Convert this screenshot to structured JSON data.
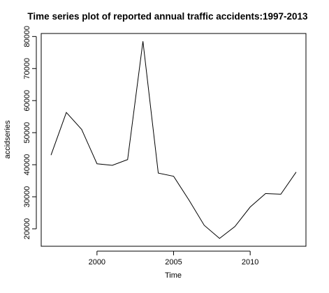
{
  "chart_data": {
    "type": "line",
    "title": "Time series plot of reported annual traffic accidents:1997-2013",
    "xlabel": "Time",
    "ylabel": "accidseries",
    "x": [
      1997,
      1998,
      1999,
      2000,
      2001,
      2002,
      2003,
      2004,
      2005,
      2006,
      2007,
      2008,
      2009,
      2010,
      2011,
      2012,
      2013
    ],
    "series": [
      {
        "values": [
          43000,
          56300,
          51000,
          40300,
          39800,
          41600,
          78500,
          37400,
          36400,
          29000,
          21100,
          17000,
          20700,
          26800,
          31000,
          30800,
          37700
        ]
      }
    ],
    "xlim": [
      1996.36,
      2013.64
    ],
    "ylim": [
      14560,
      80940
    ],
    "xticks": [
      2000,
      2005,
      2010
    ],
    "yticks": [
      20000,
      30000,
      40000,
      50000,
      60000,
      70000,
      80000
    ],
    "xtick_labels": [
      "2000",
      "2005",
      "2010"
    ],
    "ytick_labels": [
      "20000",
      "30000",
      "40000",
      "50000",
      "60000",
      "70000",
      "80000"
    ],
    "grid": false,
    "legend": "none",
    "line_color": "#000000"
  }
}
